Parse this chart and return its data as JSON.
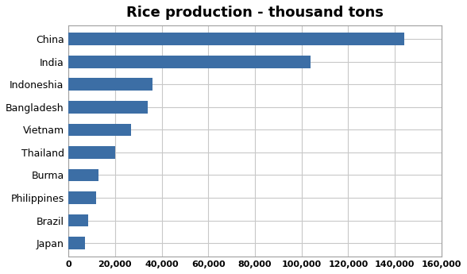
{
  "title": "Rice production - thousand tons",
  "countries": [
    "China",
    "India",
    "Indoneshia",
    "Bangladesh",
    "Vietnam",
    "Thailand",
    "Burma",
    "Philippines",
    "Brazil",
    "Japan"
  ],
  "values": [
    144000,
    104000,
    36000,
    34000,
    27000,
    20000,
    13000,
    12000,
    8500,
    7000
  ],
  "bar_color": "#3C6EA5",
  "xlim": [
    0,
    160000
  ],
  "xticks": [
    0,
    20000,
    40000,
    60000,
    80000,
    100000,
    120000,
    140000,
    160000
  ],
  "background_color": "#ffffff",
  "plot_bg_color": "#ffffff",
  "grid_color": "#c8c8c8",
  "title_fontsize": 13,
  "label_fontsize": 9,
  "tick_fontsize": 8,
  "bar_height": 0.55
}
